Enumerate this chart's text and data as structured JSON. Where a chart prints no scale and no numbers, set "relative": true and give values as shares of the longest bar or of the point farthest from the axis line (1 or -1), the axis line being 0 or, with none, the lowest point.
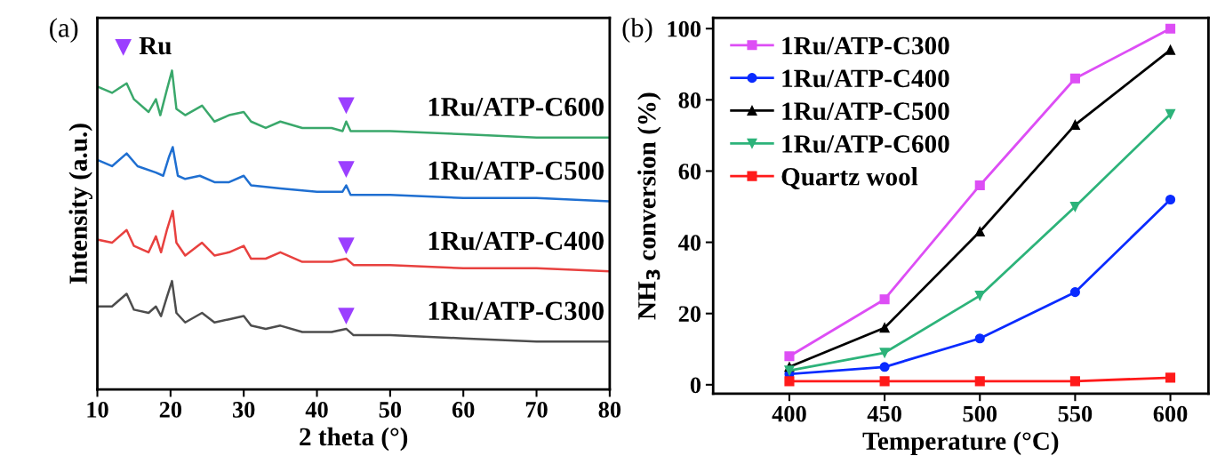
{
  "chart_data": [
    {
      "type": "line",
      "relative": true,
      "xlabel": "2 theta (°)",
      "ylabel": "Intensity (a.u.)",
      "xlim": [
        10,
        80
      ],
      "xticks": [
        10,
        20,
        30,
        40,
        50,
        60,
        70,
        80
      ],
      "tick_labels": "x",
      "legend": "top left",
      "grid": false,
      "annotations": [
        "(a)"
      ],
      "series": [
        {
          "name": "1Ru/ATP-C600",
          "color": "#3aa86b",
          "marker": "none",
          "x": [
            10,
            12,
            14,
            15,
            17,
            18,
            18.6,
            19.5,
            20.2,
            20.8,
            22,
            24.3,
            26,
            28,
            30,
            31,
            33,
            35,
            38,
            42,
            43.5,
            44,
            44.6,
            50,
            60,
            70,
            80
          ],
          "values": [
            0.95,
            0.93,
            0.96,
            0.91,
            0.87,
            0.91,
            0.86,
            0.94,
            1.0,
            0.88,
            0.86,
            0.89,
            0.84,
            0.86,
            0.87,
            0.84,
            0.82,
            0.84,
            0.82,
            0.82,
            0.81,
            0.84,
            0.81,
            0.81,
            0.8,
            0.79,
            0.79
          ]
        },
        {
          "name": "1Ru/ATP-C500",
          "color": "#1f6fd1",
          "marker": "none",
          "x": [
            10,
            12,
            14,
            15.5,
            18,
            19,
            19.8,
            20.3,
            21,
            22,
            24,
            26,
            28,
            30,
            31,
            35,
            40,
            43.5,
            44,
            44.6,
            50,
            60,
            70,
            80
          ],
          "values": [
            0.72,
            0.7,
            0.74,
            0.7,
            0.68,
            0.67,
            0.73,
            0.76,
            0.67,
            0.66,
            0.67,
            0.65,
            0.65,
            0.67,
            0.64,
            0.63,
            0.62,
            0.62,
            0.64,
            0.61,
            0.61,
            0.6,
            0.6,
            0.59
          ]
        },
        {
          "name": "1Ru/ATP-C400",
          "color": "#e8413f",
          "marker": "none",
          "x": [
            10,
            12,
            14,
            15,
            17,
            18,
            18.7,
            19.5,
            20.3,
            20.8,
            22,
            24.3,
            26,
            28,
            30,
            31,
            33,
            35,
            38,
            42,
            44,
            45,
            50,
            60,
            70,
            80
          ],
          "values": [
            0.47,
            0.46,
            0.5,
            0.45,
            0.43,
            0.48,
            0.43,
            0.5,
            0.56,
            0.46,
            0.42,
            0.46,
            0.42,
            0.43,
            0.45,
            0.41,
            0.41,
            0.43,
            0.4,
            0.4,
            0.41,
            0.39,
            0.39,
            0.38,
            0.38,
            0.37
          ]
        },
        {
          "name": "1Ru/ATP-C300",
          "color": "#4d4d4d",
          "marker": "none",
          "x": [
            10,
            12,
            14,
            15,
            17,
            18,
            18.7,
            19.5,
            20.2,
            20.8,
            22,
            24.3,
            26,
            28,
            30,
            31,
            33,
            35,
            38,
            42,
            44,
            45,
            50,
            60,
            70,
            80
          ],
          "values": [
            0.26,
            0.26,
            0.3,
            0.25,
            0.24,
            0.26,
            0.23,
            0.29,
            0.34,
            0.24,
            0.21,
            0.24,
            0.21,
            0.22,
            0.23,
            0.2,
            0.19,
            0.2,
            0.18,
            0.18,
            0.19,
            0.17,
            0.17,
            0.16,
            0.15,
            0.15
          ]
        },
        {
          "name": "Ru",
          "type": "scatter",
          "color": "#9b3fff",
          "marker": "triangle-down",
          "x": [
            44,
            44,
            44,
            44
          ],
          "values": [
            0.89,
            0.69,
            0.45,
            0.23
          ]
        }
      ]
    },
    {
      "type": "line",
      "xlabel": "Temperature (°C)",
      "ylabel": "NH$_{3}$ conversion (%)",
      "xlim": [
        360,
        620
      ],
      "xticks": [
        400,
        450,
        500,
        550,
        600
      ],
      "ylim": [
        -2.5,
        103
      ],
      "yticks": [
        0,
        20,
        40,
        60,
        80,
        100
      ],
      "legend": "top left",
      "grid": false,
      "annotations": [
        "(b)"
      ],
      "x": [
        400,
        450,
        500,
        550,
        600
      ],
      "series": [
        {
          "name": "1Ru/ATP-C300",
          "color": "#dd4ef5",
          "marker": "square",
          "values": [
            8,
            24,
            56,
            86,
            100
          ]
        },
        {
          "name": "1Ru/ATP-C400",
          "color": "#0a2bff",
          "marker": "circle",
          "values": [
            3,
            5,
            13,
            26,
            52
          ]
        },
        {
          "name": "1Ru/ATP-C500",
          "color": "#000000",
          "marker": "triangle",
          "values": [
            5,
            16,
            43,
            73,
            94
          ]
        },
        {
          "name": "1Ru/ATP-C600",
          "color": "#2db37a",
          "marker": "triangle-down",
          "values": [
            4,
            9,
            25,
            50,
            76
          ]
        },
        {
          "name": "Quartz wool",
          "color": "#ff1a1a",
          "marker": "square",
          "values": [
            1,
            1,
            1,
            1,
            2
          ]
        }
      ]
    }
  ]
}
